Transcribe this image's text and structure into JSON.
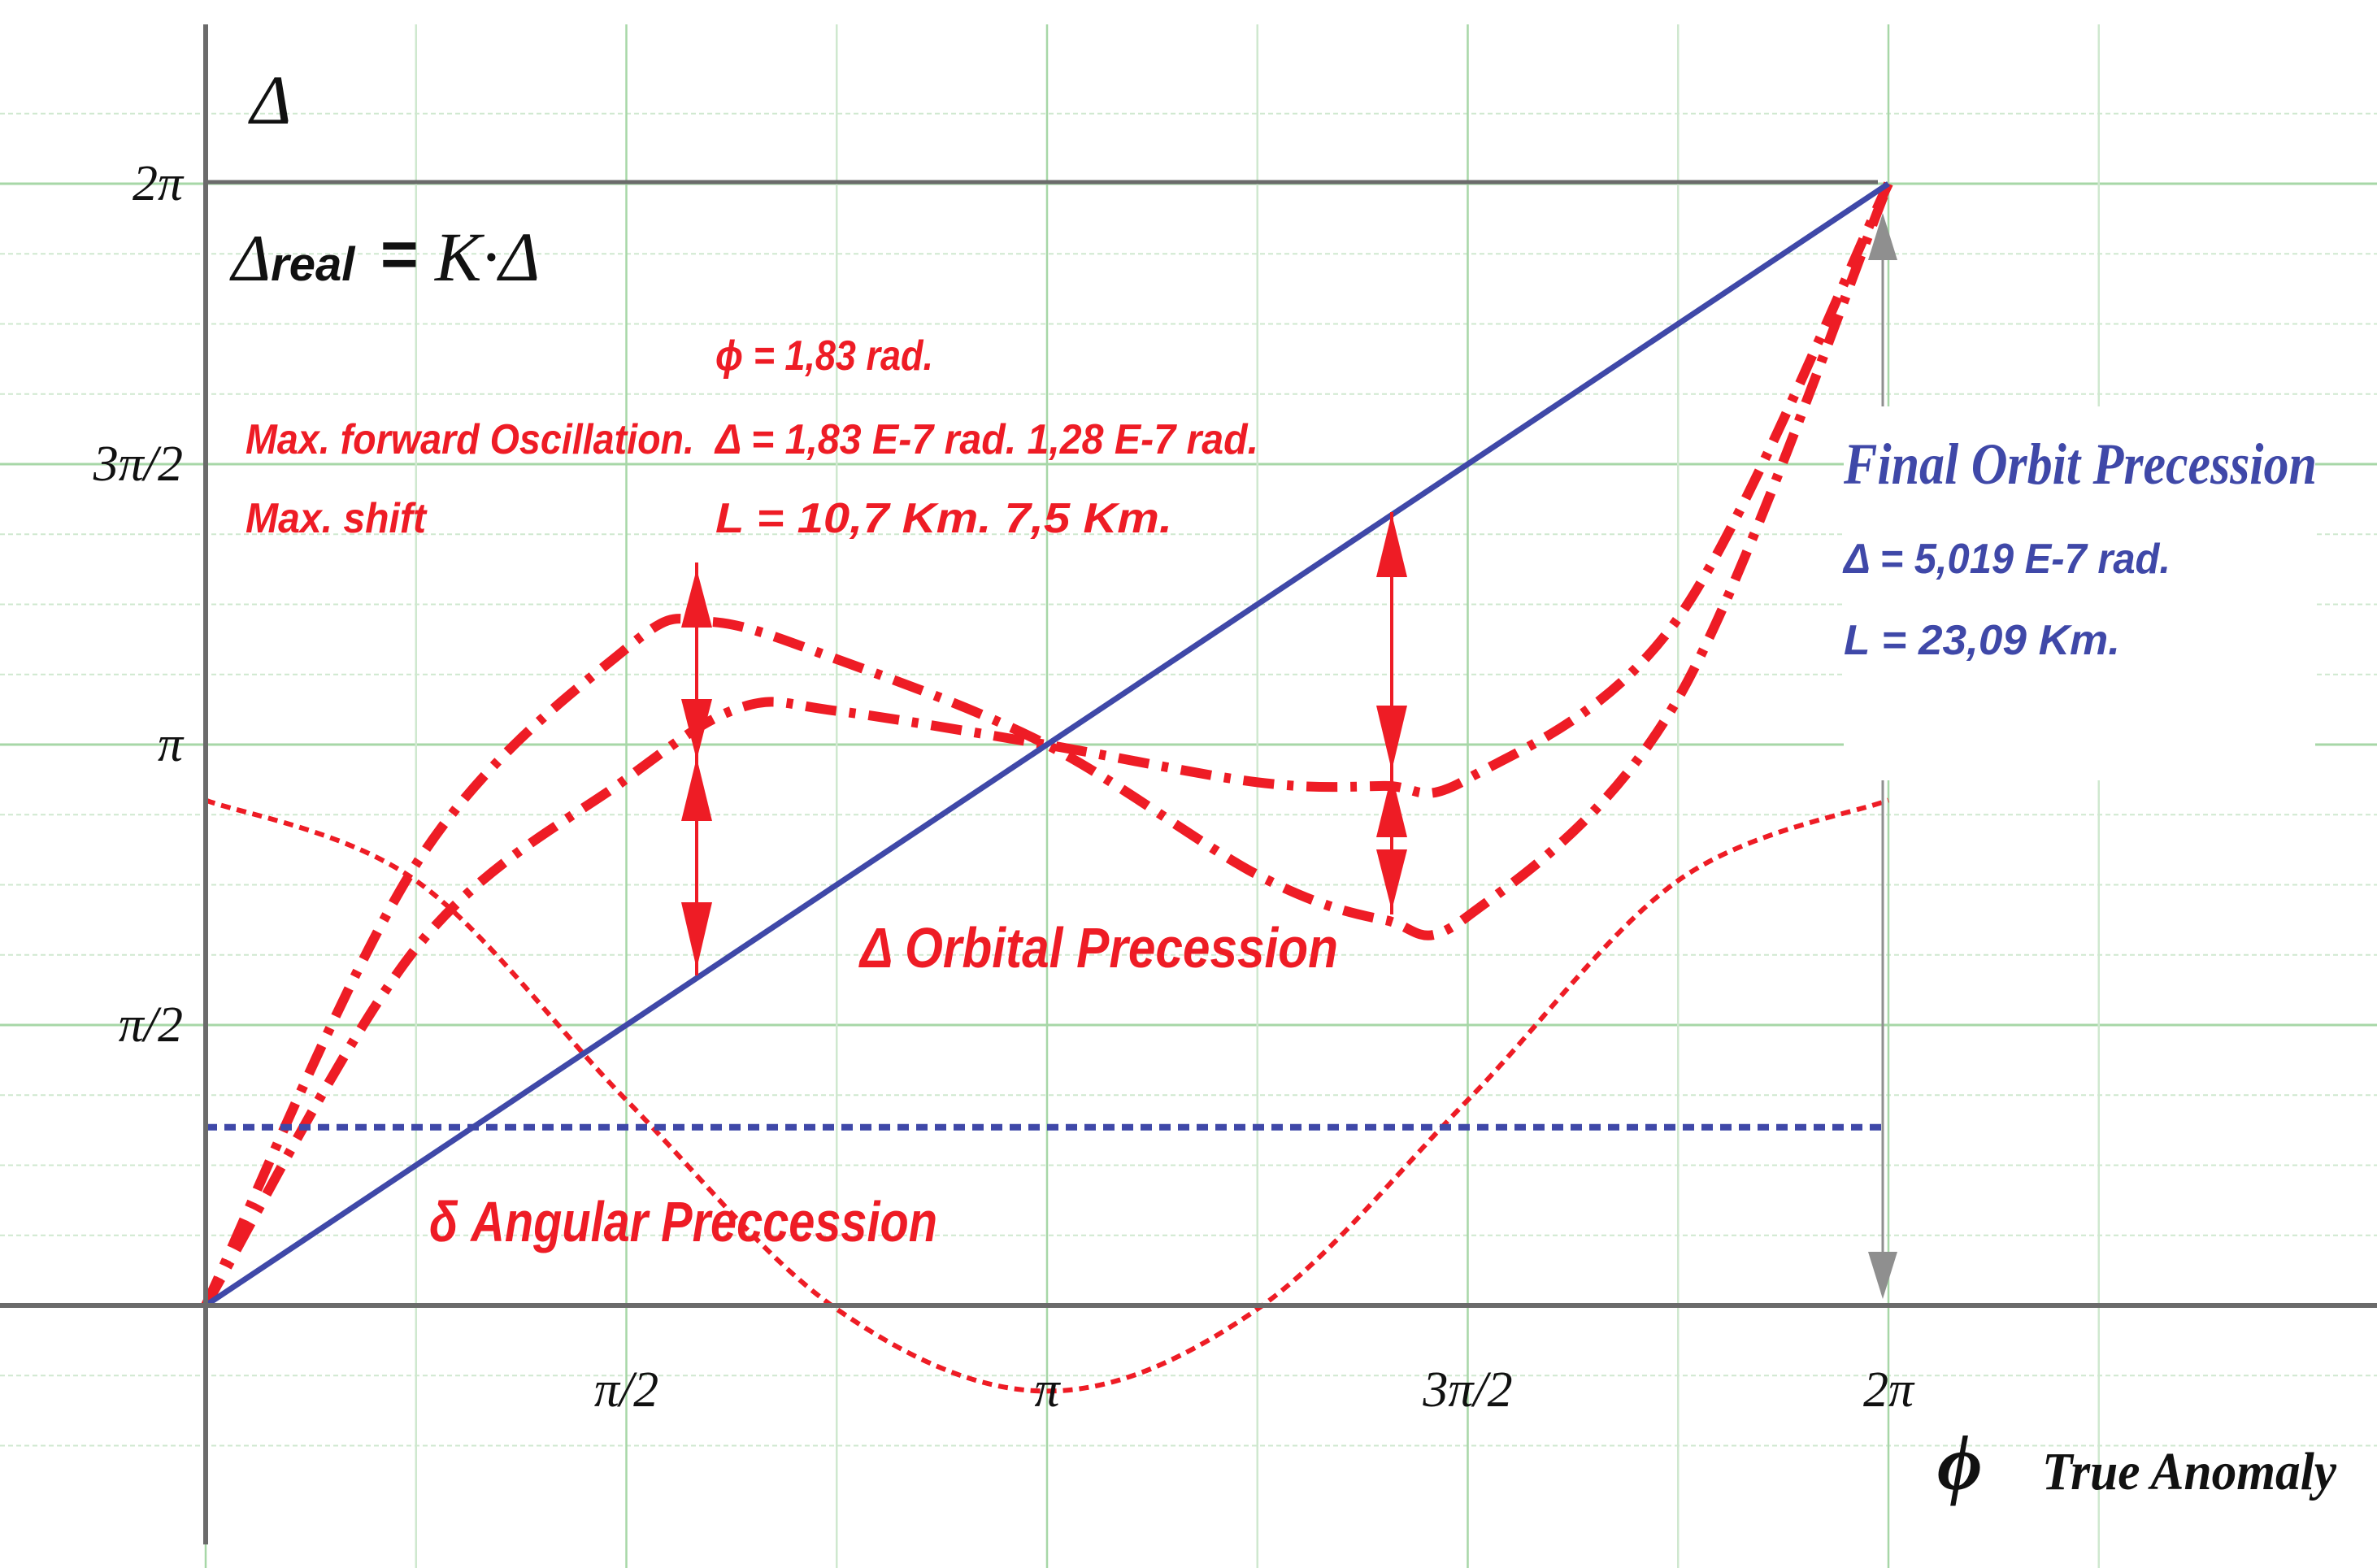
{
  "colors": {
    "red": "#ee1c25",
    "blue": "#3f48a8",
    "grid_major": "#a7d7a7",
    "grid_minor": "#cfe8cf",
    "axis": "#6b6b6b",
    "black": "#111111",
    "arrow_gray": "#8f8f8f"
  },
  "chart_data": {
    "type": "line",
    "title": "",
    "xlabel": "True Anomaly",
    "x_symbol": "ϕ",
    "y_symbol": "Δ",
    "xlim": [
      0,
      6.283
    ],
    "ylim": [
      0,
      6.283
    ],
    "x_ticks": [
      {
        "value": 1.5708,
        "label": "π/2"
      },
      {
        "value": 3.1416,
        "label": "π"
      },
      {
        "value": 4.7124,
        "label": "3π/2"
      },
      {
        "value": 6.2832,
        "label": "2π"
      }
    ],
    "y_ticks": [
      {
        "value": 1.5708,
        "label": "π/2"
      },
      {
        "value": 3.1416,
        "label": "π"
      },
      {
        "value": 4.7124,
        "label": "3π/2"
      },
      {
        "value": 6.2832,
        "label": "2π"
      }
    ],
    "grid": true,
    "series": [
      {
        "name": "Final Orbit Precession",
        "style": "solid-blue",
        "x": [
          0,
          1.5708,
          3.1416,
          4.7124,
          6.2832
        ],
        "y": [
          0,
          1.5708,
          3.1416,
          4.7124,
          6.2832
        ]
      },
      {
        "name": "",
        "style": "dashed-blue-constant",
        "x": [
          0,
          6.2832
        ],
        "y": [
          0.998,
          0.998
        ]
      },
      {
        "name": "Angular Preccession",
        "style": "dotted-red-cosine",
        "x": [
          0,
          0.785,
          1.5708,
          2.356,
          3.1416,
          3.927,
          4.7124,
          5.498,
          6.2832
        ],
        "y": [
          2.83,
          2.38,
          1.15,
          -0.02,
          -0.48,
          -0.02,
          1.15,
          2.38,
          2.83
        ]
      },
      {
        "name": "Orbital Precession",
        "style": "dashdot-red-large",
        "x": [
          0,
          0.785,
          1.5708,
          1.88,
          2.356,
          3.1416,
          3.93,
          4.4,
          4.7124,
          5.498,
          6.2832
        ],
        "y": [
          0,
          2.47,
          3.68,
          3.83,
          3.62,
          3.14,
          2.41,
          2.16,
          2.18,
          3.4,
          6.2832
        ]
      },
      {
        "name": "",
        "style": "dashdot-red-small",
        "x": [
          0,
          0.785,
          1.5708,
          2.0,
          2.356,
          3.1416,
          3.93,
          4.4,
          4.7124,
          5.498,
          6.2832
        ],
        "y": [
          0,
          2.0,
          2.95,
          3.35,
          3.33,
          3.14,
          2.93,
          2.91,
          2.95,
          3.85,
          6.2832
        ]
      }
    ]
  },
  "annotations": {
    "delta_symbol": "Δ",
    "formula": {
      "lhs": "Δ",
      "sub": "real",
      "eq": "=",
      "rhs": "K·Δ"
    },
    "phi_value": "ϕ = 1,83 rad.",
    "max_forward_label": "Max. forward Oscillation.",
    "max_forward_values": "Δ  = 1,83 E-7 rad.  1,28 E-7 rad.",
    "max_shift_label": "Max.  shift",
    "max_shift_values": "L  =  10,7  Km.     7,5 Km.",
    "final_title": "Final Orbit Precession",
    "final_delta": "Δ  = 5,019 E-7 rad.",
    "final_L": "L  =  23,09  Km.",
    "orbital_label": "Δ Orbital Precession",
    "angular_label": "δ  Angular Preccession"
  }
}
